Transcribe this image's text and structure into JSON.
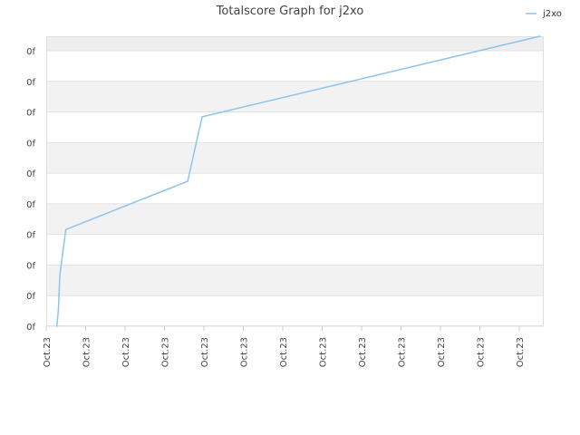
{
  "chart_data": {
    "type": "line",
    "title": "Totalscore Graph for j2xo",
    "xlabel": "",
    "ylabel": "",
    "legend_position": "top-right",
    "grid": true,
    "y_tick_labels": [
      "0f",
      "0f",
      "0f",
      "0f",
      "0f",
      "0f",
      "0f",
      "0f",
      "0f",
      "0f"
    ],
    "x_tick_labels": [
      "Oct.23",
      "Oct.23",
      "Oct.23",
      "Oct.23",
      "Oct.23",
      "Oct.23",
      "Oct.23",
      "Oct.23",
      "Oct.23",
      "Oct.23",
      "Oct.23",
      "Oct.23",
      "Oct.23"
    ],
    "xlim": [
      0,
      12.7
    ],
    "ylim": [
      0,
      9
    ],
    "series": [
      {
        "name": "j2xo",
        "color": "#8cc4ec",
        "points": [
          {
            "x": 0.27,
            "y": 0.0
          },
          {
            "x": 0.31,
            "y": 0.5
          },
          {
            "x": 0.35,
            "y": 1.6
          },
          {
            "x": 0.5,
            "y": 3.0
          },
          {
            "x": 3.61,
            "y": 4.5
          },
          {
            "x": 3.98,
            "y": 6.5
          },
          {
            "x": 12.6,
            "y": 9.0
          }
        ]
      }
    ]
  }
}
